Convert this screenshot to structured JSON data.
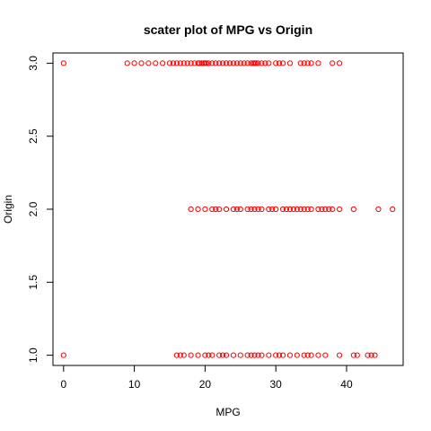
{
  "chart_data": {
    "type": "scatter",
    "title": "scater plot of MPG vs Origin",
    "xlabel": "MPG",
    "ylabel": "Origin",
    "xlim": [
      -1.5,
      48.0
    ],
    "ylim": [
      0.93,
      3.07
    ],
    "xticks": [
      0,
      10,
      20,
      30,
      40
    ],
    "xtick_labels": [
      "0",
      "10",
      "20",
      "30",
      "40"
    ],
    "yticks": [
      1.0,
      1.5,
      2.0,
      2.5,
      3.0
    ],
    "ytick_labels": [
      "1.0",
      "1.5",
      "2.0",
      "2.5",
      "3.0"
    ],
    "marker": "open-circle",
    "color": "#ff0000",
    "grid": false,
    "series": [
      {
        "origin": 3.0,
        "x": [
          0,
          9,
          10,
          11,
          12,
          13,
          14,
          15,
          15.5,
          16,
          16.5,
          17,
          17.5,
          18,
          18.5,
          19,
          19.2,
          19.5,
          19.8,
          20,
          20.2,
          20.5,
          21,
          21.5,
          22,
          22.5,
          23,
          23.5,
          24,
          24.5,
          25,
          25.5,
          26,
          26.5,
          26.8,
          27,
          27.2,
          27.5,
          28,
          28.5,
          29,
          30,
          30.5,
          31,
          32,
          33.5,
          34,
          34.5,
          35,
          36,
          38,
          39
        ]
      },
      {
        "origin": 2.0,
        "x": [
          18,
          19,
          20,
          21,
          21.5,
          22,
          23,
          24,
          24.5,
          25,
          26,
          26.5,
          27,
          27.5,
          28,
          29,
          29.5,
          30,
          31,
          31.5,
          32,
          32.5,
          33,
          33.5,
          34,
          34.5,
          35,
          36,
          36.5,
          37,
          37.5,
          38,
          39,
          41,
          44.5,
          46.5
        ]
      },
      {
        "origin": 1.0,
        "x": [
          0,
          16,
          16.5,
          17,
          18,
          19,
          20,
          20.5,
          21,
          22,
          22.5,
          23,
          24,
          25,
          26,
          26.5,
          27,
          27.5,
          28,
          29,
          30,
          30.5,
          31,
          32,
          33,
          34,
          34.5,
          35,
          36,
          37,
          39,
          41,
          41.5,
          43,
          43.5,
          44
        ]
      }
    ]
  }
}
